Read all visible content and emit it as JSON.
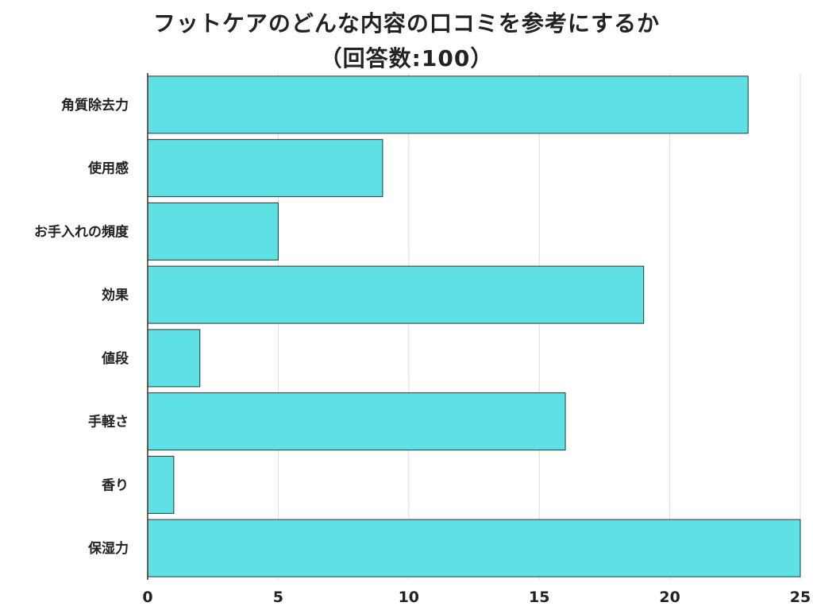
{
  "title_line1": "フットケアのどんな内容の口コミを参考にするか",
  "title_line2": "（回答数:100）",
  "colors": {
    "bar": "#5fe0e5",
    "grid": "#dddddd",
    "axis": "#333333"
  },
  "chart_data": {
    "type": "bar",
    "orientation": "horizontal",
    "categories": [
      "角質除去力",
      "使用感",
      "お手入れの頻度",
      "効果",
      "値段",
      "手軽さ",
      "香り",
      "保湿力"
    ],
    "values": [
      23,
      9,
      5,
      19,
      2,
      16,
      1,
      25
    ],
    "xlim": [
      0,
      25
    ],
    "xticks": [
      0,
      5,
      10,
      15,
      20,
      25
    ],
    "grid": true,
    "legend": "none"
  }
}
